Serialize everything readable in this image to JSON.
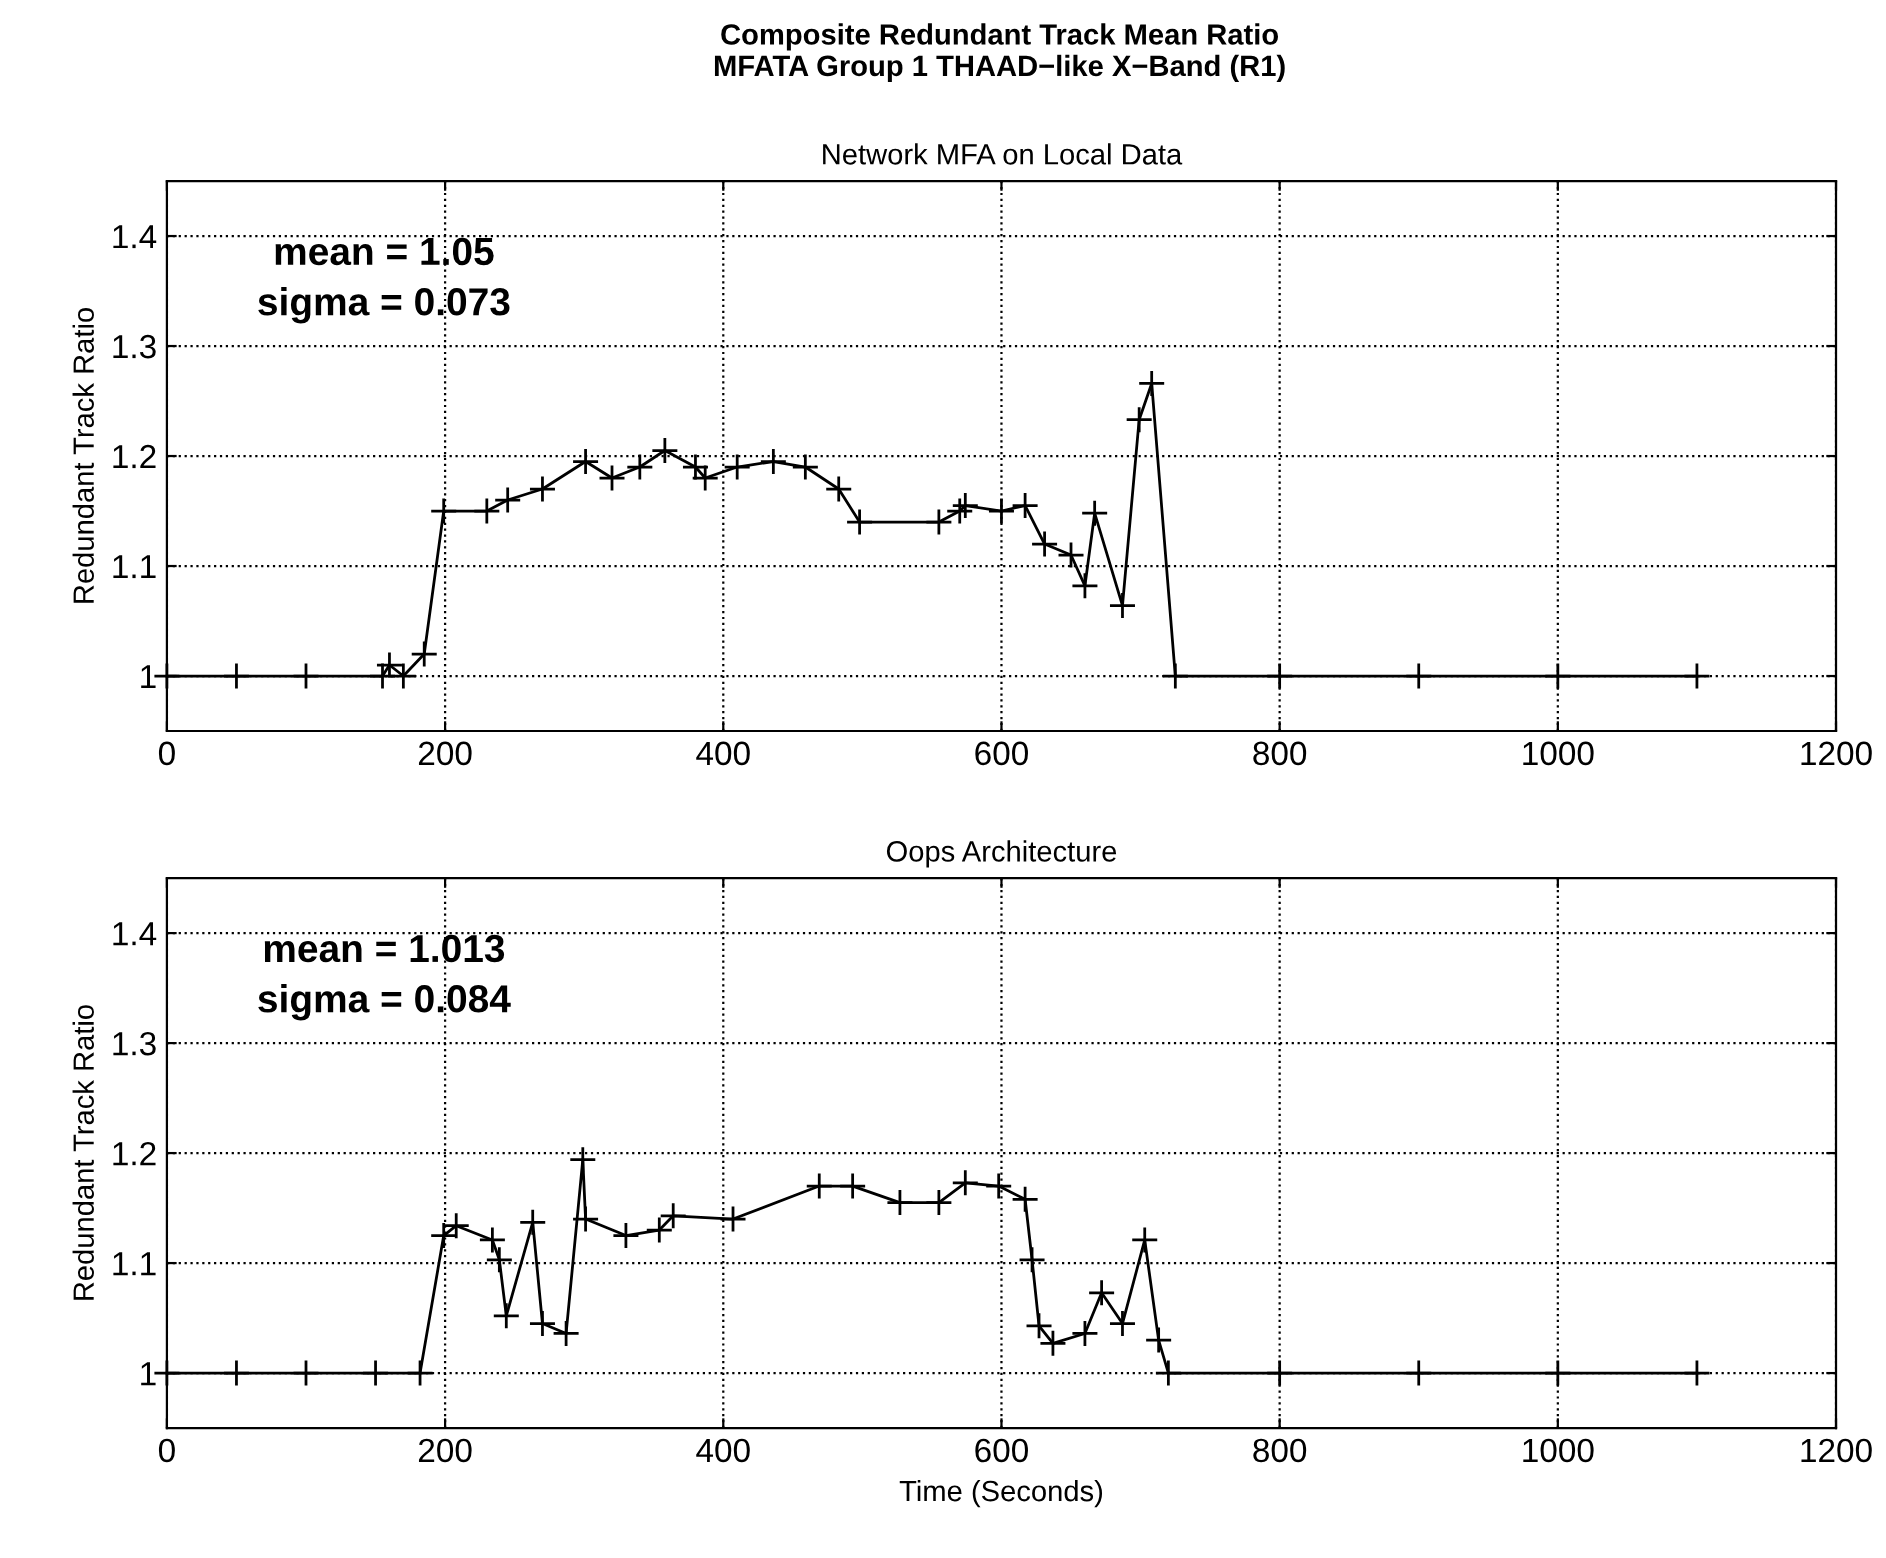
{
  "chart_data": [
    {
      "type": "line",
      "title": "Composite Redundant Track Mean Ratio\nMFATA Group 1 THAAD−like X−Band (R1)",
      "subtitle": "Network MFA on Local Data",
      "ylabel": "Redundant Track Ratio",
      "annotations": [
        "mean = 1.05\nsigma = 0.073"
      ],
      "series": [
        {
          "color": "#000000",
          "x": [
            0,
            50,
            100,
            155,
            160,
            170,
            185,
            199,
            230,
            245,
            270,
            301,
            320,
            340,
            358,
            380,
            387,
            410,
            436,
            459,
            483,
            498,
            555,
            570,
            574,
            600,
            617,
            631,
            650,
            660,
            667,
            687,
            699,
            708,
            725,
            800,
            900,
            1000,
            1100
          ],
          "values": [
            1.0,
            1.0,
            1.0,
            1.0,
            1.01,
            1.0,
            1.02,
            1.15,
            1.15,
            1.16,
            1.17,
            1.195,
            1.18,
            1.19,
            1.205,
            1.19,
            1.18,
            1.19,
            1.195,
            1.19,
            1.17,
            1.14,
            1.14,
            1.15,
            1.155,
            1.15,
            1.155,
            1.12,
            1.11,
            1.082,
            1.148,
            1.064,
            1.233,
            1.266,
            1.0,
            1.0,
            1.0,
            1.0,
            1.0
          ]
        }
      ],
      "xlim": [
        0,
        1200
      ],
      "xticks": [
        0,
        200,
        400,
        600,
        800,
        1000,
        1200
      ],
      "ylim": [
        0.95,
        1.45
      ],
      "yticks": [
        1,
        1.1,
        1.2,
        1.3,
        1.4
      ],
      "grid": true,
      "marker": "cross",
      "line_style": "solid"
    },
    {
      "type": "line",
      "title": "Oops Architecture",
      "xlabel": "Time (Seconds)",
      "ylabel": "Redundant Track Ratio",
      "annotations": [
        "mean = 1.013\nsigma = 0.084"
      ],
      "series": [
        {
          "color": "#000000",
          "x": [
            0,
            50,
            100,
            150,
            182,
            199,
            208,
            234,
            239,
            244,
            263,
            270,
            287,
            299,
            301,
            330,
            354,
            364,
            407,
            469,
            493,
            527,
            555,
            574,
            598,
            617,
            622,
            627,
            637,
            660,
            672,
            687,
            703,
            713,
            720,
            800,
            900,
            1000,
            1100
          ],
          "values": [
            1.0,
            1.0,
            1.0,
            1.0,
            1.0,
            1.125,
            1.134,
            1.121,
            1.103,
            1.052,
            1.137,
            1.045,
            1.036,
            1.194,
            1.14,
            1.125,
            1.13,
            1.143,
            1.14,
            1.17,
            1.17,
            1.155,
            1.155,
            1.173,
            1.17,
            1.158,
            1.103,
            1.043,
            1.027,
            1.036,
            1.073,
            1.045,
            1.121,
            1.03,
            1.0,
            1.0,
            1.0,
            1.0,
            1.0
          ]
        }
      ],
      "xlim": [
        0,
        1200
      ],
      "xticks": [
        0,
        200,
        400,
        600,
        800,
        1000,
        1200
      ],
      "ylim": [
        0.95,
        1.45
      ],
      "yticks": [
        1,
        1.1,
        1.2,
        1.3,
        1.4
      ],
      "grid": true,
      "marker": "cross",
      "line_style": "solid"
    }
  ]
}
